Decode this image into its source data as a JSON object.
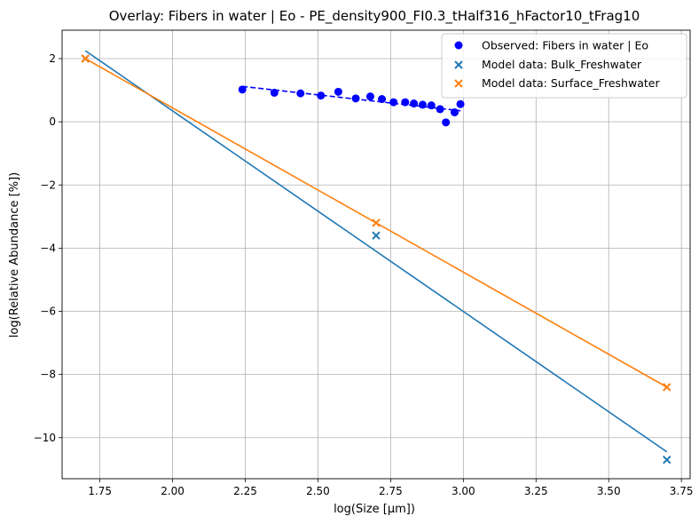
{
  "chart_data": {
    "type": "scatter",
    "title": "Overlay: Fibers in water | Eo - PE_density900_FI0.3_tHalf316_hFactor10_tFrag10",
    "xlabel": "log(Size [µm])",
    "ylabel": "log(Relative Abundance [%])",
    "xlim": [
      1.62,
      3.78
    ],
    "ylim": [
      -11.3,
      2.9
    ],
    "xticks": [
      1.75,
      2.0,
      2.25,
      2.5,
      2.75,
      3.0,
      3.25,
      3.5,
      3.75
    ],
    "xtick_labels": [
      "1.75",
      "2.00",
      "2.25",
      "2.50",
      "2.75",
      "3.00",
      "3.25",
      "3.50",
      "3.75"
    ],
    "yticks": [
      2,
      0,
      -2,
      -4,
      -6,
      -8,
      -10
    ],
    "ytick_labels": [
      "2",
      "0",
      "−2",
      "−4",
      "−6",
      "−8",
      "−10"
    ],
    "grid": true,
    "legend_position": "top-right",
    "series": [
      {
        "name": "Observed: Fibers in water | Eo",
        "kind": "scatter",
        "marker": "circle",
        "color": "#0000ff",
        "x": [
          2.24,
          2.35,
          2.44,
          2.51,
          2.57,
          2.63,
          2.68,
          2.72,
          2.76,
          2.8,
          2.83,
          2.86,
          2.89,
          2.92,
          2.94,
          2.97,
          2.99
        ],
        "y": [
          1.02,
          0.92,
          0.9,
          0.83,
          0.95,
          0.74,
          0.8,
          0.72,
          0.62,
          0.62,
          0.58,
          0.54,
          0.52,
          0.4,
          -0.02,
          0.3,
          0.56
        ]
      },
      {
        "name": "Observed fit",
        "kind": "line",
        "style": "dashed",
        "color": "#0000ff",
        "x": [
          2.24,
          2.99
        ],
        "y": [
          1.12,
          0.35
        ],
        "legend": false
      },
      {
        "name": "Model data: Bulk_Freshwater",
        "kind": "scatter",
        "marker": "x",
        "color": "#1f77b4",
        "x": [
          1.7,
          2.7,
          3.7
        ],
        "y": [
          2.0,
          -3.6,
          -10.7
        ]
      },
      {
        "name": "Bulk fit",
        "kind": "line",
        "color": "#1f77b4",
        "x": [
          1.7,
          3.7
        ],
        "y": [
          2.25,
          -10.45
        ],
        "legend": false
      },
      {
        "name": "Model data: Surface_Freshwater",
        "kind": "scatter",
        "marker": "x",
        "color": "#ff7f0e",
        "x": [
          1.7,
          2.7,
          3.7
        ],
        "y": [
          2.0,
          -3.2,
          -8.4
        ]
      },
      {
        "name": "Surface fit",
        "kind": "line",
        "color": "#ff7f0e",
        "x": [
          1.7,
          3.7
        ],
        "y": [
          2.0,
          -8.4
        ],
        "legend": false
      }
    ]
  }
}
